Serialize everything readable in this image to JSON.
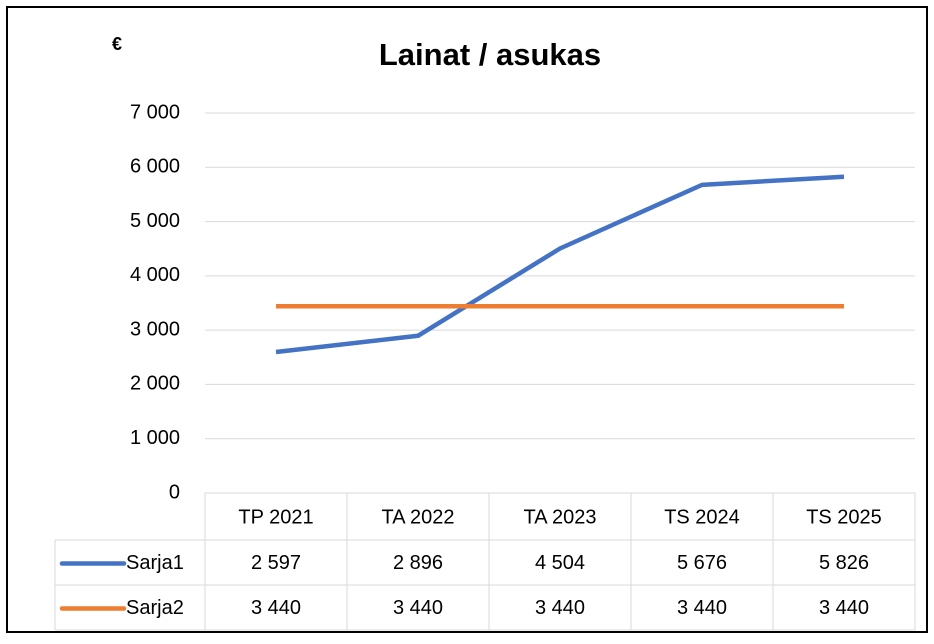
{
  "chart_data": {
    "type": "line",
    "title": "Lainat / asukas",
    "y_label": "€",
    "categories": [
      "TP 2021",
      "TA 2022",
      "TA 2023",
      "TS 2024",
      "TS 2025"
    ],
    "series": [
      {
        "name": "Sarja1",
        "color": "#4472c4",
        "values": [
          2597,
          2896,
          4504,
          5676,
          5826
        ],
        "value_labels": [
          "2 597",
          "2 896",
          "4 504",
          "5 676",
          "5 826"
        ]
      },
      {
        "name": "Sarja2",
        "color": "#ed7d31",
        "values": [
          3440,
          3440,
          3440,
          3440,
          3440
        ],
        "value_labels": [
          "3 440",
          "3 440",
          "3 440",
          "3 440",
          "3 440"
        ]
      }
    ],
    "ylim": [
      0,
      7000
    ],
    "yticks": [
      0,
      {
        "value": 1000,
        "label": "1 000"
      },
      {
        "value": 2000,
        "label": "2 000"
      },
      {
        "value": 3000,
        "label": "3 000"
      },
      {
        "value": 4000,
        "label": "4 000"
      },
      {
        "value": 5000,
        "label": "5 000"
      },
      {
        "value": 6000,
        "label": "6 000"
      },
      {
        "value": 7000,
        "label": "7 000"
      }
    ],
    "grid": true,
    "data_table": true
  }
}
